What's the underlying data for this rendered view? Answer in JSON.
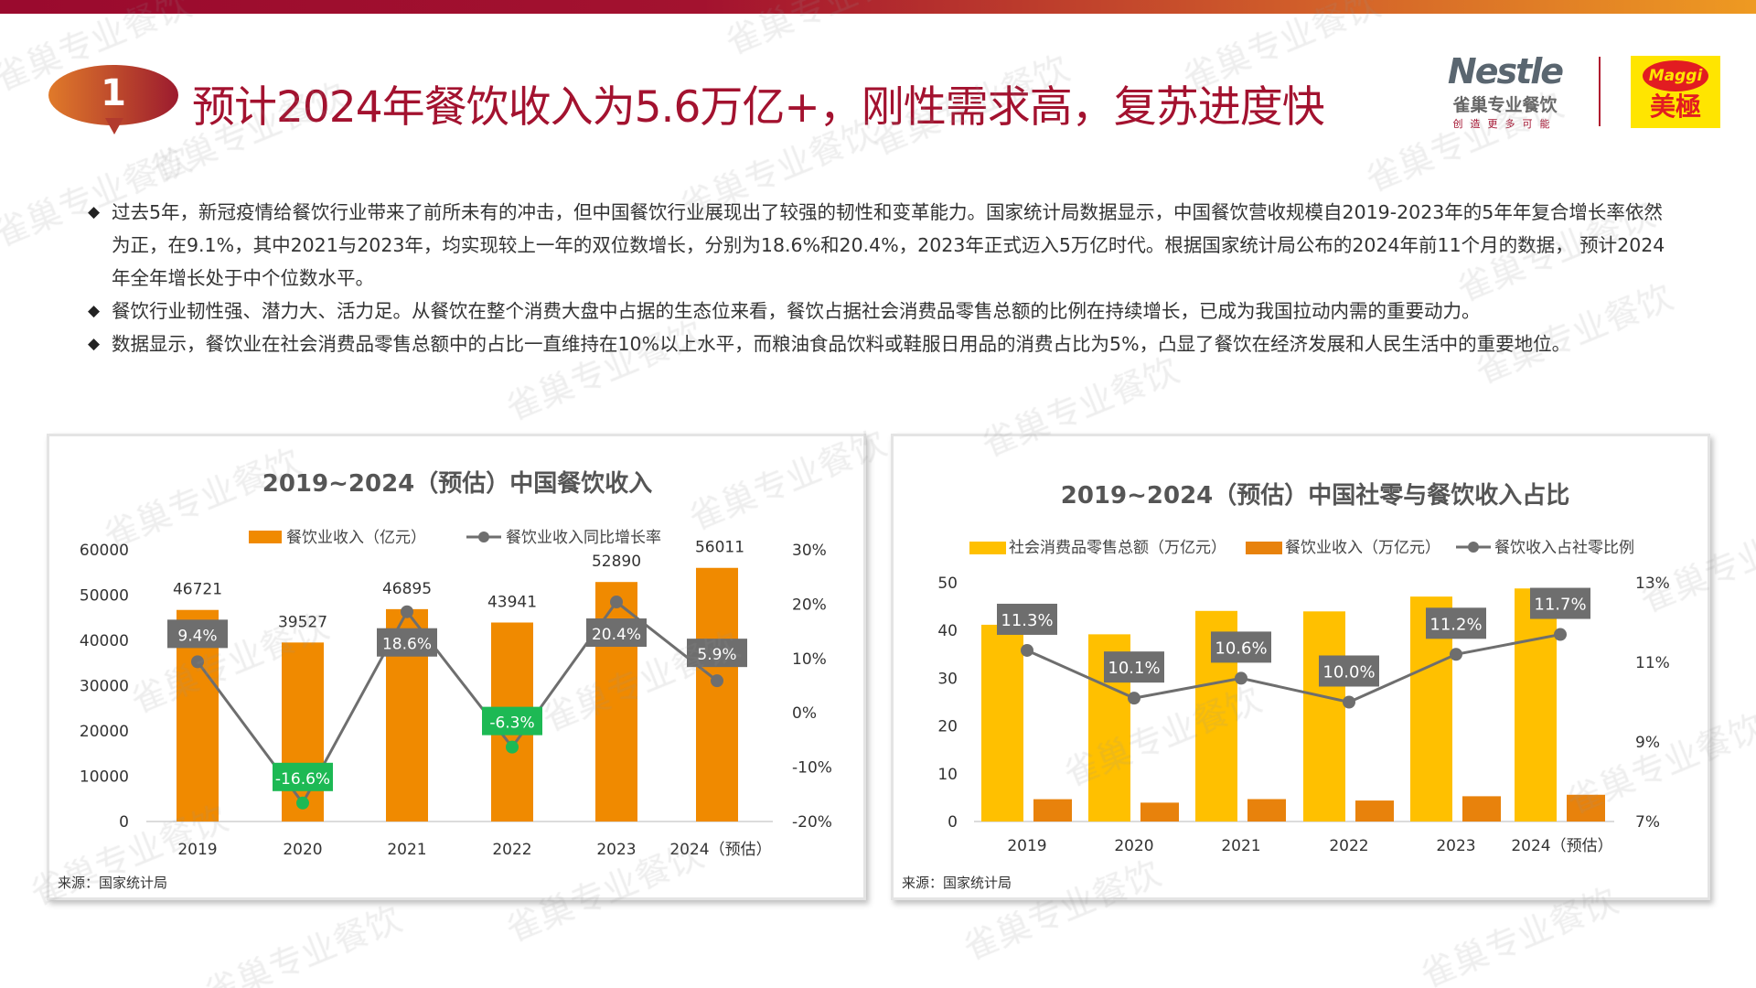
{
  "header": {
    "badge_number": "1",
    "title": "预计2024年餐饮收入为5.6万亿+，刚性需求高，复苏进度快"
  },
  "logos": {
    "nestle_word": "Nestle",
    "nestle_sub": "雀巢专业餐饮",
    "nestle_tagline": "创造更多可能",
    "maggi_word": "Maggi",
    "maggi_cn": "美極"
  },
  "watermark": "雀巢专业餐饮",
  "bullets": [
    "过去5年，新冠疫情给餐饮行业带来了前所未有的冲击，但中国餐饮行业展现出了较强的韧性和变革能力。国家统计局数据显示，中国餐饮营收规模自2019-2023年的5年年复合增长率依然为正，在9.1%，其中2021与2023年，均实现较上一年的双位数增长，分别为18.6%和20.4%，2023年正式迈入5万亿时代。根据国家统计局公布的2024年前11个月的数据， 预计2024年全年增长处于中个位数水平。",
    "餐饮行业韧性强、潜力大、活力足。从餐饮在整个消费大盘中占据的生态位来看，餐饮占据社会消费品零售总额的比例在持续增长，已成为我国拉动内需的重要动力。",
    "数据显示，餐饮业在社会消费品零售总额中的占比一直维持在10%以上水平，而粮油食品饮料或鞋服日用品的消费占比为5%，凸显了餐饮在经济发展和人民生活中的重要地位。"
  ],
  "chart_data": [
    {
      "type": "bar",
      "title": "2019~2024（预估）中国餐饮收入",
      "categories": [
        "2019",
        "2020",
        "2021",
        "2022",
        "2023",
        "2024（预估）"
      ],
      "series": [
        {
          "name": "餐饮业收入（亿元）",
          "type": "bar",
          "axis": "left",
          "color": "#f08a00",
          "values": [
            46721,
            39527,
            46895,
            43941,
            52890,
            56011
          ],
          "labels": [
            "46721",
            "39527",
            "46895",
            "43941",
            "52890",
            "56011"
          ]
        },
        {
          "name": "餐饮业收入同比增长率",
          "type": "line",
          "axis": "right",
          "color": "#6e6e6e",
          "values": [
            9.4,
            -16.6,
            18.6,
            -6.3,
            20.4,
            5.9
          ],
          "labels": [
            "9.4%",
            "-16.6%",
            "18.6%",
            "-6.3%",
            "20.4%",
            "5.9%"
          ],
          "negative_label_color": "#1db954",
          "positive_label_color": "#6e6e6e"
        }
      ],
      "ylim": [
        0,
        60000
      ],
      "yticks": [
        "0",
        "10000",
        "20000",
        "30000",
        "40000",
        "50000",
        "60000"
      ],
      "y2lim": [
        -20,
        30
      ],
      "y2ticks": [
        "-20%",
        "-10%",
        "0%",
        "10%",
        "20%",
        "30%"
      ],
      "legend": "top",
      "source": "来源：国家统计局"
    },
    {
      "type": "bar",
      "title": "2019~2024（预估）中国社零与餐饮收入占比",
      "categories": [
        "2019",
        "2020",
        "2021",
        "2022",
        "2023",
        "2024（预估）"
      ],
      "series": [
        {
          "name": "社会消费品零售总额（万亿元）",
          "type": "bar",
          "axis": "left",
          "color": "#ffc000",
          "values": [
            41.2,
            39.2,
            44.1,
            44.0,
            47.1,
            48.8
          ]
        },
        {
          "name": "餐饮业收入（万亿元）",
          "type": "bar",
          "axis": "left",
          "color": "#e8820c",
          "values": [
            4.67,
            3.95,
            4.69,
            4.39,
            5.29,
            5.6
          ]
        },
        {
          "name": "餐饮收入占社零比例",
          "type": "line",
          "axis": "right",
          "color": "#6e6e6e",
          "values": [
            11.3,
            10.1,
            10.6,
            10.0,
            11.2,
            11.7
          ],
          "labels": [
            "11.3%",
            "10.1%",
            "10.6%",
            "10.0%",
            "11.2%",
            "11.7%"
          ]
        }
      ],
      "ylim": [
        0,
        50
      ],
      "yticks": [
        "0",
        "10",
        "20",
        "30",
        "40",
        "50"
      ],
      "y2lim": [
        7,
        13
      ],
      "y2ticks": [
        "7%",
        "9%",
        "11%",
        "13%"
      ],
      "legend": "top",
      "source": "来源：国家统计局"
    }
  ]
}
